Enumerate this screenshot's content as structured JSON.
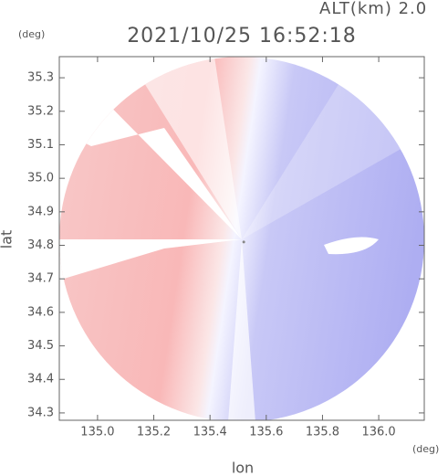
{
  "chart_data": {
    "type": "radar-ppi",
    "title": "2021/10/25 16:52:18",
    "annotation": "ALT(km) 2.0",
    "x_label": "lon",
    "y_label": "lat",
    "x_unit": "(deg)",
    "y_unit": "(deg)",
    "xlim": [
      134.864,
      136.162
    ],
    "ylim": [
      34.278,
      35.363
    ],
    "xticks": [
      {
        "value": 135,
        "label": "135.0"
      },
      135.2,
      135.4,
      135.6,
      135.8,
      {
        "value": 136,
        "label": "136.0"
      }
    ],
    "yticks": [
      34.3,
      34.4,
      34.5,
      34.6,
      34.7,
      34.8,
      34.9,
      {
        "value": 35,
        "label": "35.0"
      },
      35.1,
      35.2,
      35.3
    ],
    "center": [
      135.52,
      34.81
    ]
  }
}
